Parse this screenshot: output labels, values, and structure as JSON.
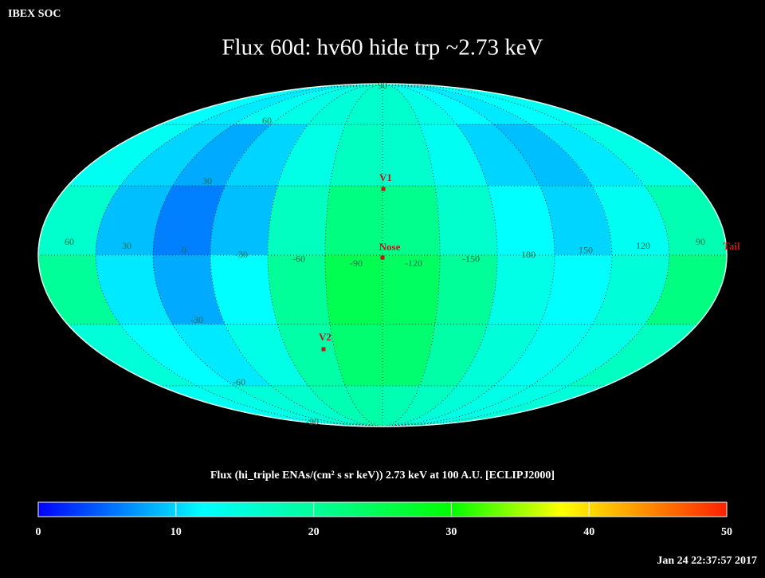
{
  "header": {
    "left": "IBEX SOC",
    "title": "Flux   60d: hv60 hide trp ~2.73 keV",
    "timestamp": "Jan 24 22:37:57 2017"
  },
  "map": {
    "flux": [
      [
        12,
        11,
        13,
        14,
        15,
        16,
        16,
        14,
        12,
        11,
        12,
        13
      ],
      [
        13,
        10,
        8,
        10,
        14,
        17,
        16,
        13,
        10,
        9,
        11,
        14
      ],
      [
        16,
        9,
        6,
        9,
        17,
        22,
        21,
        16,
        12,
        10,
        13,
        18
      ],
      [
        20,
        11,
        8,
        12,
        20,
        25,
        24,
        20,
        14,
        12,
        15,
        22
      ],
      [
        15,
        12,
        11,
        14,
        19,
        23,
        23,
        19,
        15,
        13,
        14,
        17
      ],
      [
        13,
        14,
        15,
        16,
        18,
        19,
        18,
        17,
        15,
        14,
        14,
        15
      ]
    ],
    "longitude_labels": [
      60,
      30,
      0,
      -30,
      -60,
      -90,
      -120,
      -150,
      180,
      150,
      120,
      90
    ],
    "latitude_labels": [
      90,
      60,
      30,
      -30,
      -60,
      -90
    ],
    "markers": [
      "V1",
      "Nose",
      "V2",
      "Tail"
    ]
  },
  "colorbar": {
    "label": "Flux (hi_triple ENAs/(cm² s sr keV))  2.73 keV at 100 A.U. [ECLIPJ2000]",
    "range": [
      0,
      50
    ],
    "ticks": [
      0,
      10,
      20,
      30,
      40,
      50
    ]
  }
}
